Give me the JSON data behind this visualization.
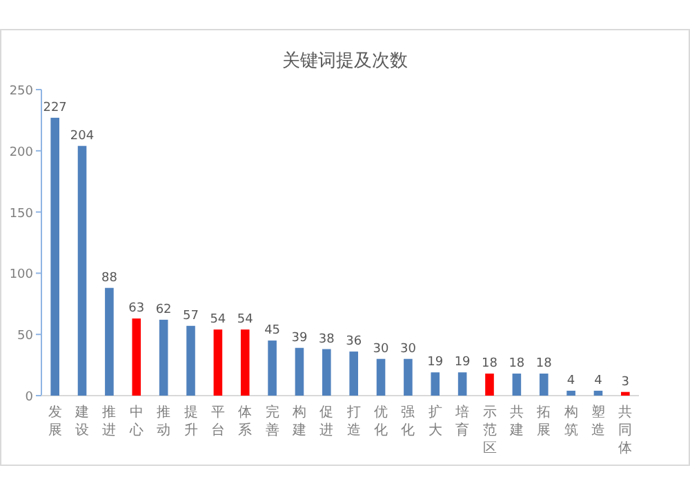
{
  "chart_data": {
    "type": "bar",
    "title": "关键词提及次数",
    "categories": [
      "发展",
      "建设",
      "推进",
      "中心",
      "推动",
      "提升",
      "平台",
      "体系",
      "完善",
      "构建",
      "促进",
      "打造",
      "优化",
      "强化",
      "扩大",
      "培育",
      "示范区",
      "共建",
      "拓展",
      "构筑",
      "塑造",
      "共同体"
    ],
    "values": [
      227,
      204,
      88,
      63,
      62,
      57,
      54,
      54,
      45,
      39,
      38,
      36,
      30,
      30,
      19,
      19,
      18,
      18,
      18,
      4,
      4,
      3
    ],
    "colors": [
      "#4f81bd",
      "#4f81bd",
      "#4f81bd",
      "#ff0000",
      "#4f81bd",
      "#4f81bd",
      "#ff0000",
      "#ff0000",
      "#4f81bd",
      "#4f81bd",
      "#4f81bd",
      "#4f81bd",
      "#4f81bd",
      "#4f81bd",
      "#4f81bd",
      "#4f81bd",
      "#ff0000",
      "#4f81bd",
      "#4f81bd",
      "#4f81bd",
      "#4f81bd",
      "#ff0000"
    ],
    "ylim": [
      0,
      250
    ],
    "yticks": [
      0,
      50,
      100,
      150,
      200,
      250
    ],
    "data_labels": true,
    "grid": false
  }
}
